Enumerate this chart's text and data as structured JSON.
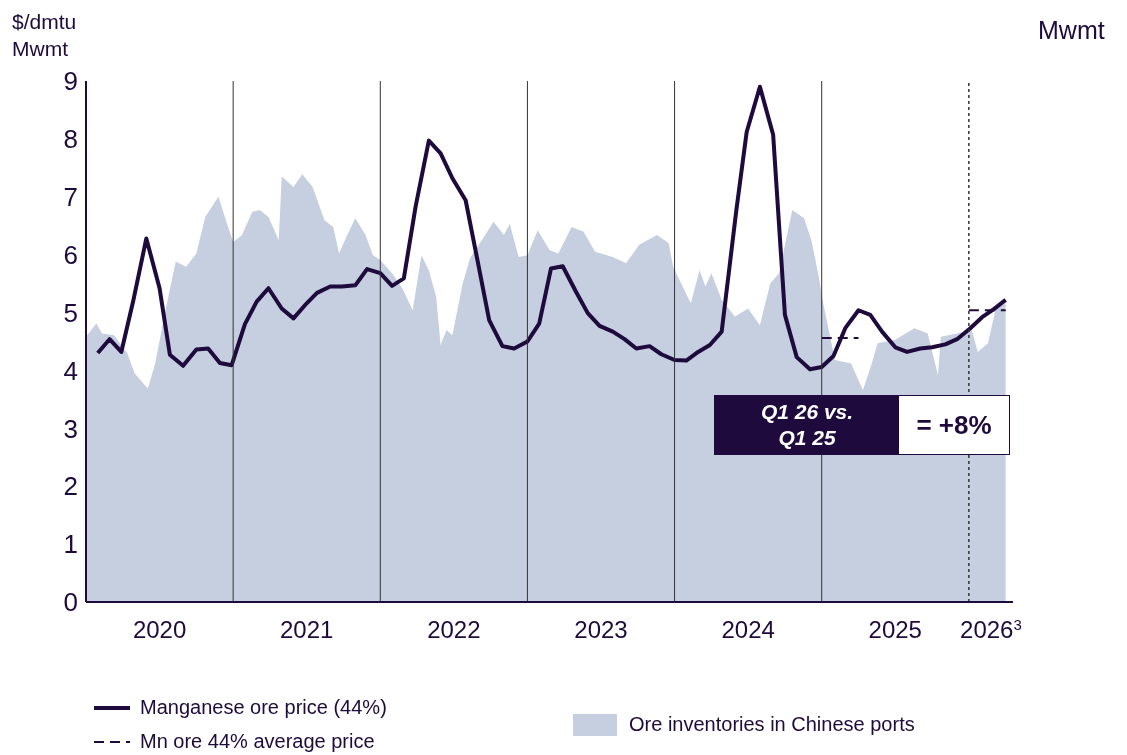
{
  "chart_data": {
    "type": "line",
    "ylabel": "$/dmtu\nMwmt",
    "y2label": "Mwmt",
    "xlim": [
      2020,
      2026.3
    ],
    "xticks": [
      {
        "value": 2020.5,
        "label": "2020"
      },
      {
        "value": 2021.5,
        "label": "2021"
      },
      {
        "value": 2022.5,
        "label": "2022"
      },
      {
        "value": 2023.5,
        "label": "2023"
      },
      {
        "value": 2024.5,
        "label": "2024"
      },
      {
        "value": 2025.5,
        "label": "2025"
      },
      {
        "value": 2026.15,
        "label": "2026$^{3}$"
      }
    ],
    "ylim": [
      0,
      9
    ],
    "yticks": [
      0,
      1,
      2,
      3,
      4,
      5,
      6,
      7,
      8,
      9
    ],
    "legend": "bottom",
    "marker": "none",
    "series": [
      {
        "name": "Ore inventories in Chinese ports",
        "type": "area",
        "color": "#c5cfe0",
        "x": [
          2020.0,
          2020.07,
          2020.11,
          2020.19,
          2020.28,
          2020.33,
          2020.42,
          2020.47,
          2020.54,
          2020.61,
          2020.68,
          2020.75,
          2020.81,
          2020.9,
          2020.95,
          2021.0,
          2021.06,
          2021.13,
          2021.18,
          2021.24,
          2021.31,
          2021.33,
          2021.41,
          2021.47,
          2021.54,
          2021.62,
          2021.68,
          2021.72,
          2021.77,
          2021.83,
          2021.9,
          2021.95,
          2022.0,
          2022.08,
          2022.15,
          2022.22,
          2022.28,
          2022.33,
          2022.38,
          2022.41,
          2022.45,
          2022.49,
          2022.56,
          2022.61,
          2022.69,
          2022.77,
          2022.84,
          2022.88,
          2022.94,
          2023.0,
          2023.07,
          2023.15,
          2023.21,
          2023.3,
          2023.38,
          2023.46,
          2023.58,
          2023.67,
          2023.76,
          2023.88,
          2023.96,
          2023.99,
          2024.11,
          2024.17,
          2024.21,
          2024.25,
          2024.32,
          2024.41,
          2024.5,
          2024.58,
          2024.65,
          2024.71,
          2024.8,
          2024.88,
          2024.93,
          2024.98,
          2025.01,
          2025.09,
          2025.2,
          2025.28,
          2025.34,
          2025.38,
          2025.5,
          2025.63,
          2025.72,
          2025.79,
          2025.81,
          2025.92,
          2026.02,
          2026.06,
          2026.13,
          2026.18,
          2026.25
        ],
        "values": [
          4.58,
          4.81,
          4.64,
          4.61,
          4.3,
          3.95,
          3.69,
          4.12,
          5.04,
          5.88,
          5.79,
          6.02,
          6.65,
          7.0,
          6.6,
          6.22,
          6.34,
          6.74,
          6.77,
          6.65,
          6.25,
          7.35,
          7.17,
          7.39,
          7.17,
          6.6,
          6.48,
          6.02,
          6.31,
          6.63,
          6.34,
          5.99,
          5.91,
          5.68,
          5.42,
          5.04,
          5.99,
          5.73,
          5.27,
          4.44,
          4.7,
          4.61,
          5.5,
          5.94,
          6.25,
          6.57,
          6.34,
          6.53,
          5.96,
          5.99,
          6.42,
          6.08,
          6.02,
          6.48,
          6.4,
          6.05,
          5.96,
          5.85,
          6.17,
          6.34,
          6.2,
          5.79,
          5.16,
          5.73,
          5.45,
          5.68,
          5.22,
          4.93,
          5.07,
          4.78,
          5.5,
          5.68,
          6.77,
          6.63,
          6.25,
          5.62,
          5.16,
          4.18,
          4.12,
          3.66,
          4.12,
          4.47,
          4.53,
          4.73,
          4.64,
          3.92,
          4.58,
          4.64,
          4.7,
          4.32,
          4.47,
          5.04,
          5.16
        ]
      },
      {
        "name": "Manganese ore price (44%)",
        "color": "#1e0a3c",
        "line_style": "solid",
        "x": [
          2020.08,
          2020.16,
          2020.24,
          2020.32,
          2020.41,
          2020.5,
          2020.57,
          2020.66,
          2020.75,
          2020.83,
          2020.91,
          2020.99,
          2021.08,
          2021.16,
          2021.24,
          2021.33,
          2021.41,
          2021.5,
          2021.57,
          2021.66,
          2021.74,
          2021.83,
          2021.91,
          2022.0,
          2022.08,
          2022.16,
          2022.24,
          2022.33,
          2022.41,
          2022.49,
          2022.58,
          2022.66,
          2022.74,
          2022.83,
          2022.91,
          2023.0,
          2023.08,
          2023.16,
          2023.24,
          2023.33,
          2023.41,
          2023.49,
          2023.58,
          2023.66,
          2023.74,
          2023.83,
          2023.91,
          2024.0,
          2024.08,
          2024.16,
          2024.24,
          2024.32,
          2024.42,
          2024.49,
          2024.58,
          2024.67,
          2024.75,
          2024.83,
          2024.92,
          2025.0,
          2025.08,
          2025.16,
          2025.25,
          2025.33,
          2025.41,
          2025.5,
          2025.58,
          2025.67,
          2025.75,
          2025.84,
          2025.92,
          2026.01,
          2026.09,
          2026.17,
          2026.25
        ],
        "values": [
          4.3,
          4.54,
          4.32,
          5.19,
          6.28,
          5.42,
          4.27,
          4.08,
          4.36,
          4.38,
          4.13,
          4.09,
          4.8,
          5.19,
          5.42,
          5.07,
          4.9,
          5.16,
          5.34,
          5.45,
          5.45,
          5.47,
          5.75,
          5.68,
          5.46,
          5.59,
          6.83,
          7.97,
          7.75,
          7.32,
          6.94,
          5.91,
          4.87,
          4.42,
          4.38,
          4.5,
          4.81,
          5.76,
          5.8,
          5.36,
          4.99,
          4.77,
          4.67,
          4.54,
          4.38,
          4.42,
          4.28,
          4.18,
          4.17,
          4.32,
          4.44,
          4.67,
          6.77,
          8.12,
          8.9,
          8.07,
          4.96,
          4.23,
          4.02,
          4.06,
          4.25,
          4.73,
          5.04,
          4.96,
          4.67,
          4.4,
          4.32,
          4.38,
          4.4,
          4.45,
          4.54,
          4.73,
          4.92,
          5.06,
          5.22
        ]
      },
      {
        "name": "Mn ore 44% average price",
        "color": "#1e0a3c",
        "line_style": "dashed",
        "x": [
          2025.0,
          2025.25,
          2025.5,
          2026.0,
          2026.25
        ],
        "values": [
          4.56,
          4.56,
          null,
          5.04,
          5.04
        ]
      }
    ],
    "ref_lines": [
      {
        "axis": "x",
        "value": 2021,
        "color": "#333333",
        "line_style": "solid"
      },
      {
        "axis": "x",
        "value": 2022,
        "color": "#333333",
        "line_style": "solid"
      },
      {
        "axis": "x",
        "value": 2023,
        "color": "#333333",
        "line_style": "solid"
      },
      {
        "axis": "x",
        "value": 2024,
        "color": "#333333",
        "line_style": "solid"
      },
      {
        "axis": "x",
        "value": 2025,
        "color": "#333333",
        "line_style": "solid"
      },
      {
        "axis": "x",
        "value": 2026,
        "color": "#333333",
        "line_style": "dotted"
      }
    ],
    "annotations": [
      "Q1 26 vs. Q1 25",
      "= +8%"
    ]
  }
}
